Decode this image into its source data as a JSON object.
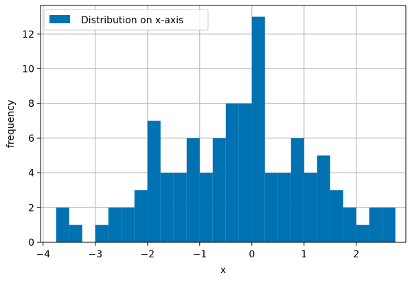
{
  "chart_data": {
    "type": "bar",
    "title": "",
    "xlabel": "x",
    "ylabel": "frequency",
    "xlim": [
      -4.05,
      2.95
    ],
    "ylim": [
      0,
      13.65
    ],
    "grid": true,
    "legend_position": "top-left",
    "color": "#0072B2",
    "series": [
      {
        "name": "Distribution on x-axis",
        "bins": [
          {
            "start": -3.75,
            "end": -3.5,
            "value": 2
          },
          {
            "start": -3.5,
            "end": -3.25,
            "value": 1
          },
          {
            "start": -3.25,
            "end": -3.0,
            "value": 0
          },
          {
            "start": -3.0,
            "end": -2.75,
            "value": 1
          },
          {
            "start": -2.75,
            "end": -2.5,
            "value": 2
          },
          {
            "start": -2.5,
            "end": -2.25,
            "value": 2
          },
          {
            "start": -2.25,
            "end": -2.0,
            "value": 3
          },
          {
            "start": -2.0,
            "end": -1.75,
            "value": 7
          },
          {
            "start": -1.75,
            "end": -1.5,
            "value": 4
          },
          {
            "start": -1.5,
            "end": -1.25,
            "value": 4
          },
          {
            "start": -1.25,
            "end": -1.0,
            "value": 6
          },
          {
            "start": -1.0,
            "end": -0.75,
            "value": 4
          },
          {
            "start": -0.75,
            "end": -0.5,
            "value": 6
          },
          {
            "start": -0.5,
            "end": -0.25,
            "value": 8
          },
          {
            "start": -0.25,
            "end": 0.0,
            "value": 8
          },
          {
            "start": 0.0,
            "end": 0.25,
            "value": 13
          },
          {
            "start": 0.25,
            "end": 0.5,
            "value": 4
          },
          {
            "start": 0.5,
            "end": 0.75,
            "value": 4
          },
          {
            "start": 0.75,
            "end": 1.0,
            "value": 6
          },
          {
            "start": 1.0,
            "end": 1.25,
            "value": 4
          },
          {
            "start": 1.25,
            "end": 1.5,
            "value": 5
          },
          {
            "start": 1.5,
            "end": 1.75,
            "value": 3
          },
          {
            "start": 1.75,
            "end": 2.0,
            "value": 2
          },
          {
            "start": 2.0,
            "end": 2.25,
            "value": 1
          },
          {
            "start": 2.25,
            "end": 2.5,
            "value": 2
          },
          {
            "start": 2.5,
            "end": 2.75,
            "value": 2
          }
        ]
      }
    ],
    "xticks": [
      {
        "value": -4,
        "label": "−4"
      },
      {
        "value": -3,
        "label": "−3"
      },
      {
        "value": -2,
        "label": "−2"
      },
      {
        "value": -1,
        "label": "−1"
      },
      {
        "value": 0,
        "label": "0"
      },
      {
        "value": 1,
        "label": "1"
      },
      {
        "value": 2,
        "label": "2"
      }
    ],
    "yticks": [
      {
        "value": 0,
        "label": "0"
      },
      {
        "value": 2,
        "label": "2"
      },
      {
        "value": 4,
        "label": "4"
      },
      {
        "value": 6,
        "label": "6"
      },
      {
        "value": 8,
        "label": "8"
      },
      {
        "value": 10,
        "label": "10"
      },
      {
        "value": 12,
        "label": "12"
      }
    ]
  }
}
